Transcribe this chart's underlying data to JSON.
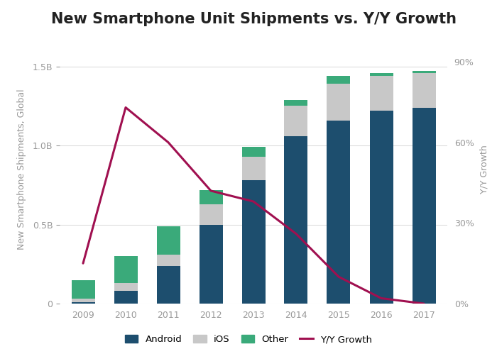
{
  "title": "New Smartphone Unit Shipments vs. Y/Y Growth",
  "years": [
    2009,
    2010,
    2011,
    2012,
    2013,
    2014,
    2015,
    2016,
    2017
  ],
  "android": [
    0.01,
    0.08,
    0.24,
    0.5,
    0.78,
    1.06,
    1.16,
    1.22,
    1.24
  ],
  "ios": [
    0.02,
    0.05,
    0.07,
    0.13,
    0.15,
    0.19,
    0.23,
    0.22,
    0.22
  ],
  "other": [
    0.12,
    0.17,
    0.18,
    0.09,
    0.06,
    0.04,
    0.05,
    0.02,
    0.01
  ],
  "yy_growth": [
    0.15,
    0.73,
    0.6,
    0.42,
    0.38,
    0.26,
    0.1,
    0.02,
    0.0
  ],
  "android_color": "#1d4e6e",
  "ios_color": "#c8c8c8",
  "other_color": "#3aaa7a",
  "growth_color": "#a01050",
  "ylabel_left": "New Smartphone Shipments, Global",
  "ylabel_right": "Y/Y Growth",
  "ylim_left": [
    0,
    1.7
  ],
  "ylim_right": [
    0,
    1.0
  ],
  "yticks_left": [
    0,
    0.5,
    1.0,
    1.5
  ],
  "ytick_labels_left": [
    "0",
    "0.5B",
    "1.0B",
    "1.5B"
  ],
  "yticks_right": [
    0,
    0.3,
    0.6,
    0.9
  ],
  "ytick_labels_right": [
    "0%",
    "30%",
    "60%",
    "90%"
  ],
  "background_color": "#ffffff",
  "grid_color": "#dddddd",
  "title_fontsize": 15,
  "axis_label_fontsize": 9,
  "tick_fontsize": 9
}
